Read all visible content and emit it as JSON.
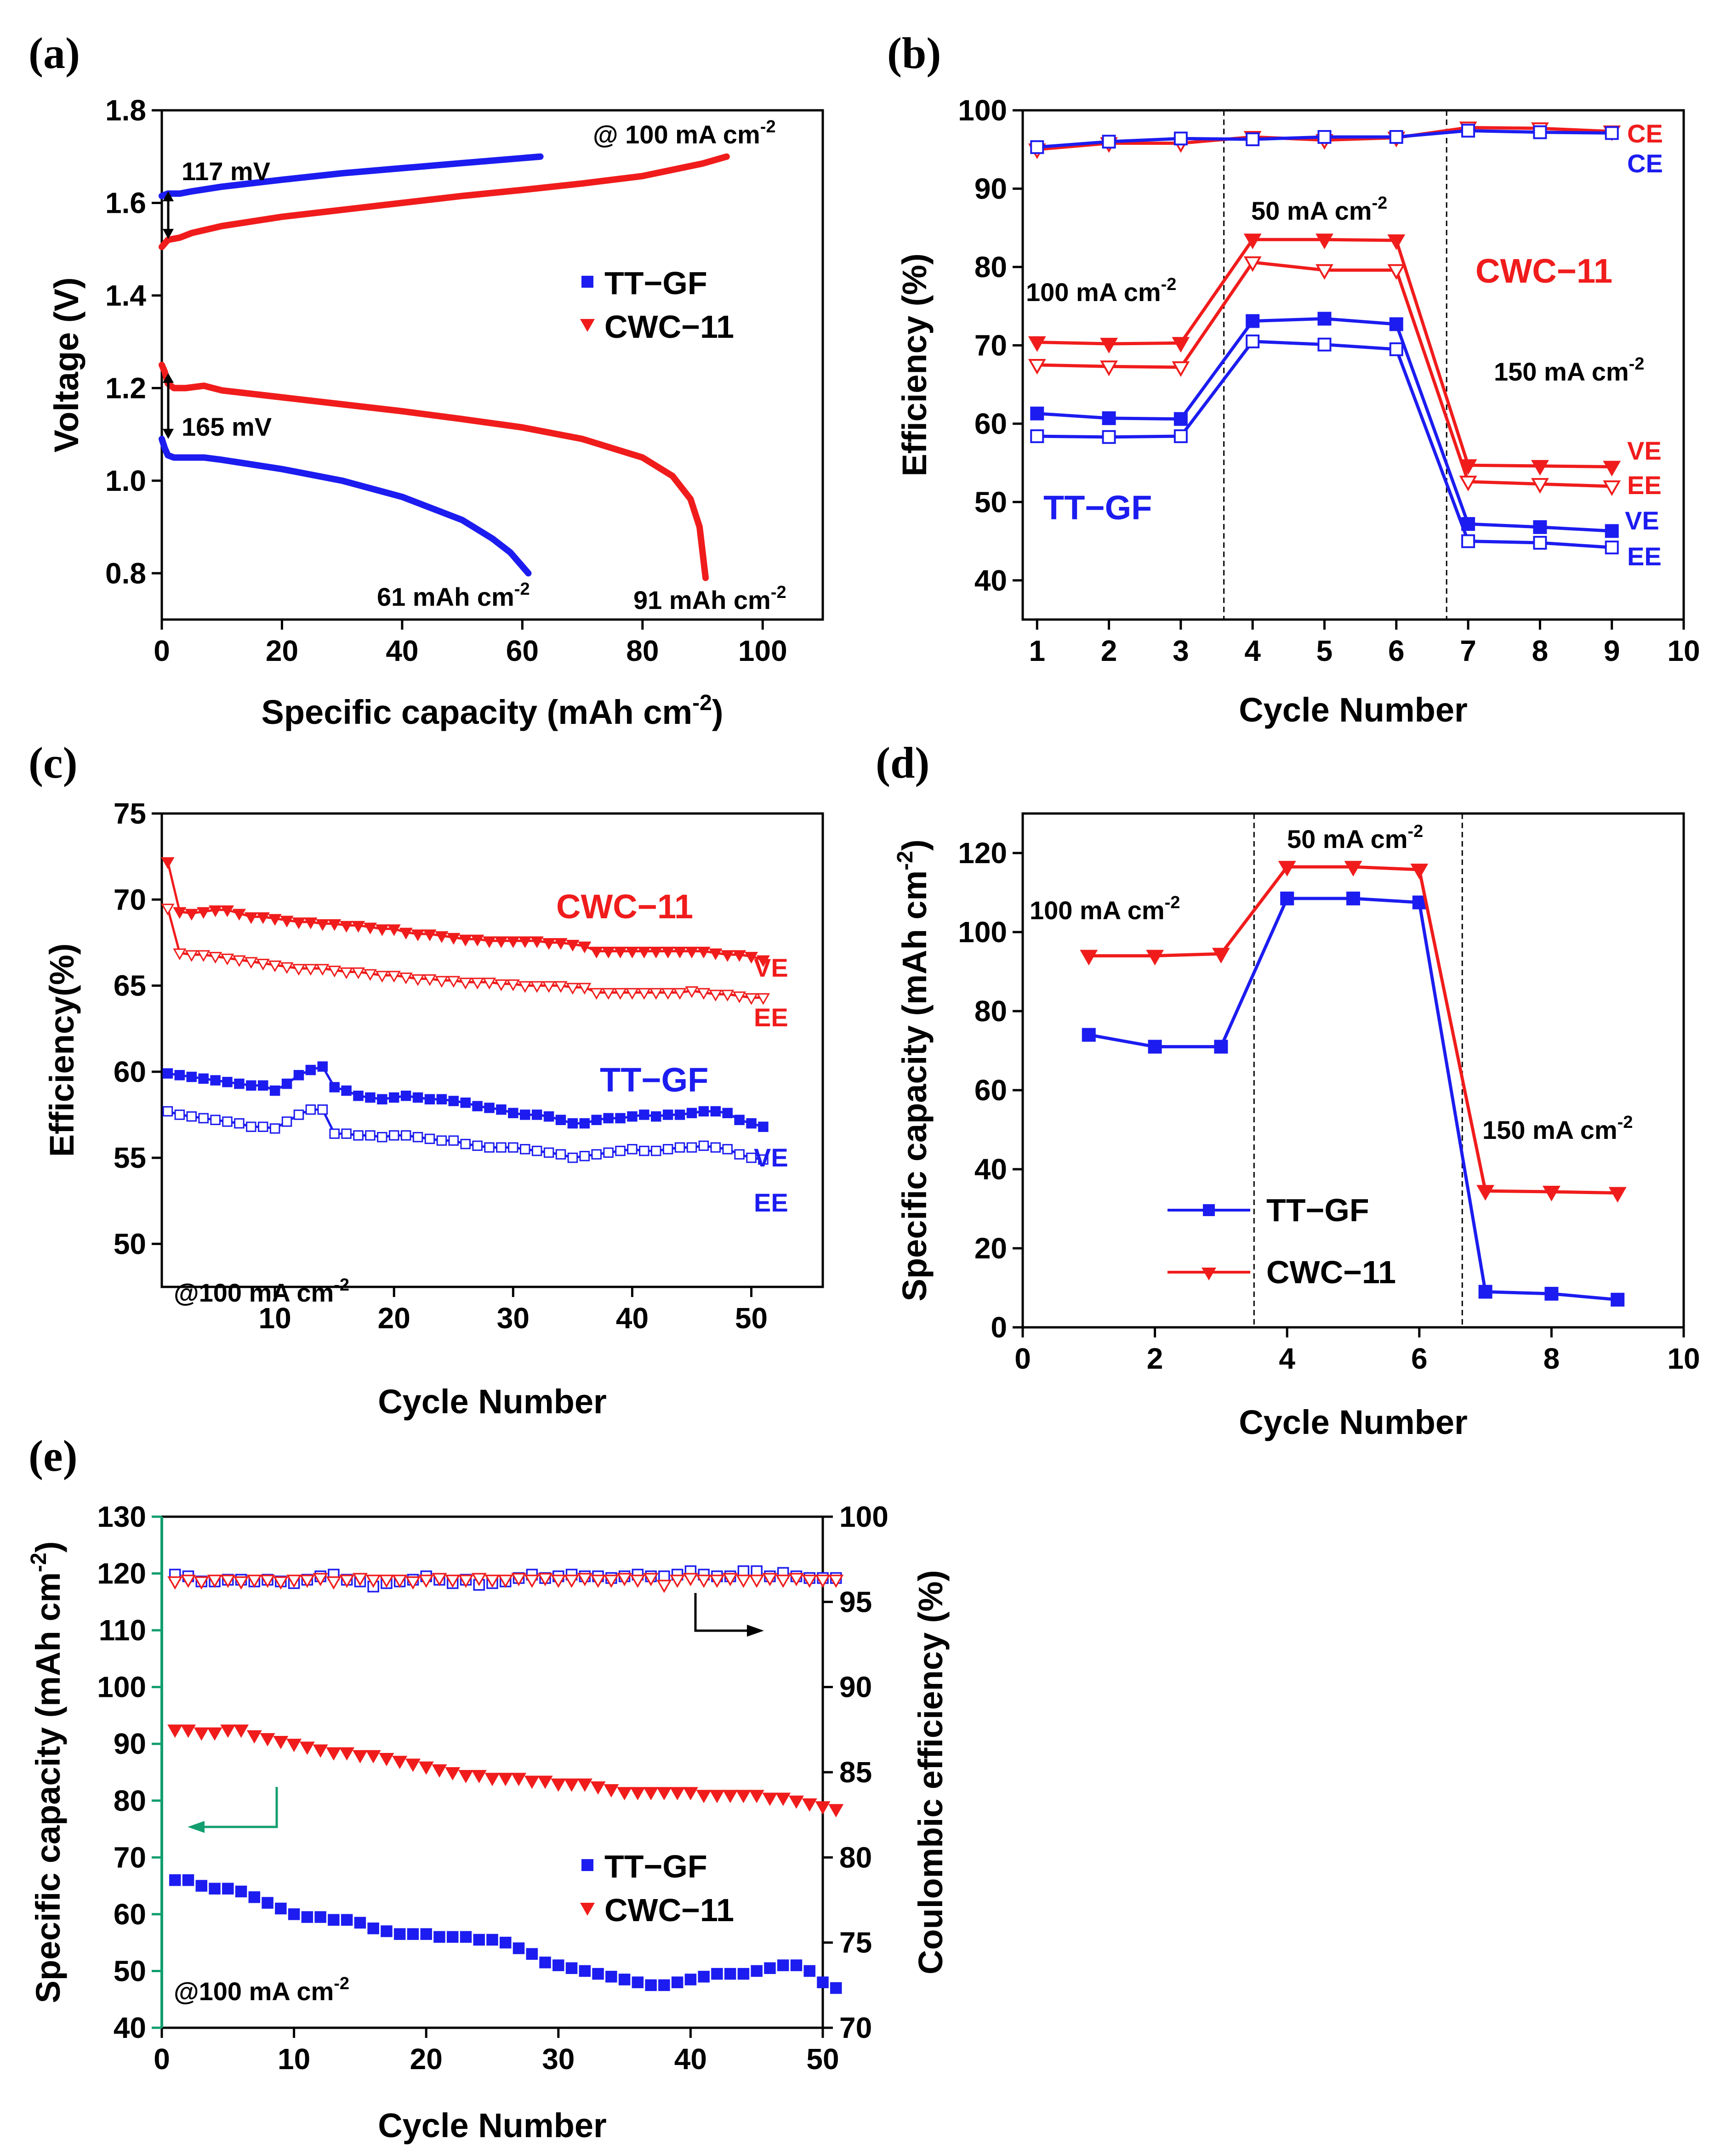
{
  "chart_data": [
    {
      "id": "a",
      "panel_label": "(a)",
      "type": "line",
      "xlabel": "Specific capacity (mAh cm",
      "xlabel_sup": "-2",
      "xlabel_end": ")",
      "ylabel": "Voltage (V)",
      "xlim": [
        0,
        110
      ],
      "ylim": [
        0.7,
        1.8
      ],
      "xticks": [
        0,
        20,
        40,
        60,
        80,
        100
      ],
      "yticks": [
        0.8,
        1.0,
        1.2,
        1.4,
        1.6,
        1.8
      ],
      "ytick_labels": [
        "0.8",
        "1.0",
        "1.2",
        "1.4",
        "1.6",
        "1.8"
      ],
      "colors": {
        "TT-GF": "#1c1cf0",
        "CWC-11": "#f01c1c"
      },
      "series": [
        {
          "name": "TT-GF charge",
          "color": "#1c1cf0",
          "x": [
            0,
            1,
            3,
            5,
            10,
            20,
            30,
            40,
            50,
            63
          ],
          "y": [
            1.615,
            1.62,
            1.62,
            1.625,
            1.635,
            1.65,
            1.664,
            1.675,
            1.686,
            1.7
          ]
        },
        {
          "name": "CWC-11 charge",
          "color": "#f01c1c",
          "x": [
            0,
            1,
            3,
            5,
            10,
            20,
            30,
            40,
            50,
            60,
            70,
            80,
            90,
            94
          ],
          "y": [
            1.505,
            1.52,
            1.525,
            1.535,
            1.55,
            1.57,
            1.585,
            1.6,
            1.615,
            1.628,
            1.642,
            1.658,
            1.685,
            1.7
          ]
        },
        {
          "name": "CWC-11 discharge",
          "color": "#f01c1c",
          "x": [
            0,
            0.5,
            1,
            2,
            4,
            7,
            10,
            20,
            30,
            40,
            50,
            60,
            70,
            80,
            85,
            88,
            89.5,
            90.5
          ],
          "y": [
            1.25,
            1.235,
            1.21,
            1.2,
            1.2,
            1.205,
            1.195,
            1.18,
            1.165,
            1.15,
            1.133,
            1.115,
            1.09,
            1.05,
            1.01,
            0.96,
            0.9,
            0.79
          ]
        },
        {
          "name": "TT-GF discharge",
          "color": "#1c1cf0",
          "x": [
            0,
            0.5,
            1,
            2,
            4,
            7,
            10,
            20,
            30,
            40,
            50,
            55,
            58,
            61
          ],
          "y": [
            1.09,
            1.07,
            1.055,
            1.05,
            1.05,
            1.05,
            1.045,
            1.025,
            1.0,
            0.965,
            0.915,
            0.875,
            0.845,
            0.8
          ]
        }
      ],
      "legend": [
        "TT−GF",
        "CWC−11"
      ],
      "annotations": {
        "rate": "@ 100 mA cm",
        "rate_sup": "-2",
        "charge_gap": "117 mV",
        "discharge_gap": "165 mV",
        "tt_cap": "61 mAh cm",
        "cwc_cap": "91 mAh cm",
        "sup": "-2"
      }
    },
    {
      "id": "b",
      "panel_label": "(b)",
      "type": "line",
      "xlabel": "Cycle Number",
      "ylabel": "Efficiency (%)",
      "xlim": [
        0.8,
        10
      ],
      "ylim": [
        35,
        100
      ],
      "xticks": [
        1,
        2,
        3,
        4,
        5,
        6,
        7,
        8,
        9,
        10
      ],
      "yticks": [
        40,
        50,
        60,
        70,
        80,
        90,
        100
      ],
      "vlines": [
        3.6,
        6.7
      ],
      "x": [
        1,
        2,
        3,
        4,
        5,
        6,
        7,
        8,
        9
      ],
      "series": [
        {
          "name": "CWC-11 CE",
          "color": "#f01c1c",
          "marker": "tri-down-open",
          "values": [
            95.0,
            95.8,
            95.8,
            96.6,
            96.2,
            96.5,
            97.8,
            97.7,
            97.3
          ]
        },
        {
          "name": "TT-GF CE",
          "color": "#1c1cf0",
          "marker": "square-open",
          "values": [
            95.3,
            96.0,
            96.4,
            96.3,
            96.6,
            96.6,
            97.4,
            97.2,
            97.1
          ]
        },
        {
          "name": "CWC-11 VE",
          "color": "#f01c1c",
          "marker": "tri-down",
          "values": [
            70.4,
            70.2,
            70.3,
            83.5,
            83.5,
            83.4,
            54.7,
            54.6,
            54.5
          ]
        },
        {
          "name": "CWC-11 EE",
          "color": "#f01c1c",
          "marker": "tri-down-open",
          "values": [
            67.5,
            67.3,
            67.2,
            80.6,
            79.6,
            79.6,
            52.6,
            52.3,
            52.0
          ]
        },
        {
          "name": "TT-GF VE",
          "color": "#1c1cf0",
          "marker": "square",
          "values": [
            61.3,
            60.7,
            60.6,
            73.1,
            73.4,
            72.7,
            47.2,
            46.8,
            46.3
          ]
        },
        {
          "name": "TT-GF EE",
          "color": "#1c1cf0",
          "marker": "square-open",
          "values": [
            58.4,
            58.3,
            58.4,
            70.5,
            70.1,
            69.5,
            45.0,
            44.8,
            44.2
          ]
        }
      ],
      "labels": {
        "ce": "CE",
        "ve": "VE",
        "ee": "EE",
        "tt": "TT−GF",
        "cwc": "CWC−11",
        "r100": "100 mA cm",
        "r50": "50 mA cm",
        "r150": "150 mA cm",
        "sup": "-2"
      }
    },
    {
      "id": "c",
      "panel_label": "(c)",
      "type": "line",
      "xlabel": "Cycle Number",
      "ylabel": "Efficiency(%)",
      "xlim": [
        0.5,
        56
      ],
      "ylim": [
        47.5,
        75
      ],
      "xticks": [
        10,
        20,
        30,
        40,
        50
      ],
      "yticks": [
        50,
        55,
        60,
        65,
        70,
        75
      ],
      "x_start": 1,
      "series": [
        {
          "name": "CWC-11 VE",
          "color": "#f01c1c",
          "marker": "tri-down",
          "values": [
            72.2,
            69.3,
            69.2,
            69.3,
            69.4,
            69.4,
            69.2,
            69.0,
            69.0,
            68.9,
            68.8,
            68.7,
            68.7,
            68.6,
            68.6,
            68.5,
            68.5,
            68.4,
            68.3,
            68.3,
            68.1,
            68.0,
            68.0,
            67.9,
            67.8,
            67.7,
            67.7,
            67.6,
            67.6,
            67.6,
            67.6,
            67.6,
            67.5,
            67.5,
            67.4,
            67.3,
            67.0,
            67.0,
            67.0,
            67.0,
            67.0,
            67.0,
            67.0,
            67.0,
            67.0,
            67.0,
            66.9,
            66.8,
            66.8,
            66.7,
            66.5
          ]
        },
        {
          "name": "CWC-11 EE",
          "color": "#f01c1c",
          "marker": "tri-down-open",
          "values": [
            69.5,
            66.9,
            66.8,
            66.8,
            66.7,
            66.6,
            66.5,
            66.4,
            66.3,
            66.2,
            66.1,
            66.0,
            66.0,
            66.0,
            65.9,
            65.8,
            65.8,
            65.7,
            65.6,
            65.6,
            65.5,
            65.4,
            65.4,
            65.3,
            65.3,
            65.2,
            65.2,
            65.2,
            65.1,
            65.1,
            65.0,
            65.0,
            65.0,
            65.0,
            64.9,
            64.9,
            64.6,
            64.6,
            64.6,
            64.6,
            64.6,
            64.6,
            64.6,
            64.6,
            64.7,
            64.6,
            64.5,
            64.5,
            64.4,
            64.3,
            64.3
          ]
        },
        {
          "name": "TT-GF VE",
          "color": "#1c1cf0",
          "marker": "square",
          "values": [
            59.9,
            59.8,
            59.7,
            59.6,
            59.5,
            59.4,
            59.3,
            59.2,
            59.2,
            58.9,
            59.3,
            59.8,
            60.1,
            60.3,
            59.1,
            58.9,
            58.6,
            58.5,
            58.4,
            58.5,
            58.6,
            58.5,
            58.4,
            58.4,
            58.3,
            58.2,
            58.0,
            57.9,
            57.8,
            57.6,
            57.5,
            57.5,
            57.4,
            57.2,
            57.0,
            57.0,
            57.2,
            57.3,
            57.3,
            57.4,
            57.5,
            57.4,
            57.5,
            57.5,
            57.6,
            57.7,
            57.7,
            57.6,
            57.2,
            57.0,
            56.8
          ]
        },
        {
          "name": "TT-GF EE",
          "color": "#1c1cf0",
          "marker": "square-open",
          "values": [
            57.7,
            57.5,
            57.4,
            57.3,
            57.2,
            57.1,
            57.0,
            56.8,
            56.8,
            56.7,
            57.1,
            57.5,
            57.8,
            57.8,
            56.4,
            56.4,
            56.3,
            56.3,
            56.2,
            56.3,
            56.3,
            56.2,
            56.1,
            56.0,
            56.0,
            55.8,
            55.7,
            55.6,
            55.6,
            55.6,
            55.5,
            55.4,
            55.3,
            55.2,
            55.0,
            55.1,
            55.2,
            55.3,
            55.4,
            55.5,
            55.4,
            55.4,
            55.5,
            55.6,
            55.6,
            55.7,
            55.6,
            55.5,
            55.2,
            55.0,
            54.9
          ]
        }
      ],
      "labels": {
        "cwc": "CWC−11",
        "tt": "TT−GF",
        "ve": "VE",
        "ee": "EE",
        "rate": "@100 mA cm",
        "sup": "-2"
      }
    },
    {
      "id": "d",
      "panel_label": "(d)",
      "type": "line",
      "xlabel": "Cycle Number",
      "ylabel": "Specific capacity (mAh cm",
      "ylabel_sup": "-2",
      "ylabel_end": ")",
      "xlim": [
        0,
        10
      ],
      "ylim": [
        0,
        130
      ],
      "xticks": [
        0,
        2,
        4,
        6,
        8,
        10
      ],
      "yticks": [
        0,
        20,
        40,
        60,
        80,
        100,
        120
      ],
      "vlines": [
        3.5,
        6.65
      ],
      "x": [
        1,
        2,
        3,
        4,
        5,
        6,
        7,
        8,
        9
      ],
      "series": [
        {
          "name": "TT-GF",
          "color": "#1c1cf0",
          "marker": "square",
          "values": [
            74,
            71,
            71,
            108.5,
            108.5,
            107.5,
            9,
            8.5,
            7
          ]
        },
        {
          "name": "CWC-11",
          "color": "#f01c1c",
          "marker": "tri-down",
          "values": [
            94,
            94,
            94.5,
            116.5,
            116.5,
            115.8,
            34.5,
            34.3,
            34
          ]
        }
      ],
      "legend": [
        "TT−GF",
        "CWC−11"
      ],
      "labels": {
        "r100": "100 mA cm",
        "r50": "50 mA cm",
        "r150": "150 mA cm",
        "sup": "-2"
      }
    },
    {
      "id": "e",
      "panel_label": "(e)",
      "type": "scatter",
      "xlabel": "Cycle Number",
      "ylabel_left": "Specific capacity (mAh cm",
      "ylabel_left_sup": "-2",
      "ylabel_left_end": ")",
      "ylabel_right": "Coulombic efficiency (%)",
      "xlim": [
        0,
        50
      ],
      "ylim_left": [
        40,
        130
      ],
      "ylim_right": [
        70,
        100
      ],
      "xticks": [
        0,
        10,
        20,
        30,
        40,
        50
      ],
      "yticks_left": [
        40,
        50,
        60,
        70,
        80,
        90,
        100,
        110,
        120,
        130
      ],
      "yticks_right": [
        70,
        75,
        80,
        85,
        90,
        95,
        100
      ],
      "x_start": 1,
      "series": [
        {
          "name": "TT-GF capacity",
          "axis": "left",
          "color": "#1c1cf0",
          "marker": "square",
          "values": [
            66,
            66,
            65,
            64.5,
            64.5,
            64,
            63,
            62,
            61,
            60,
            59.5,
            59.5,
            59,
            59,
            58.5,
            57.5,
            57,
            56.5,
            56.5,
            56.5,
            56,
            56,
            56,
            55.5,
            55.5,
            55,
            54,
            53,
            51.5,
            51,
            50.5,
            50,
            49.5,
            49,
            48.5,
            48,
            47.5,
            47.5,
            48,
            48.5,
            49,
            49.5,
            49.5,
            49.5,
            50,
            50.5,
            51,
            51,
            50,
            48,
            47
          ]
        },
        {
          "name": "CWC-11 capacity",
          "axis": "left",
          "color": "#f01c1c",
          "marker": "tri-down",
          "values": [
            92.5,
            92.5,
            92,
            92,
            92.5,
            92.5,
            91.5,
            91,
            90.5,
            90,
            89.5,
            89,
            88.5,
            88.5,
            88,
            88,
            87.5,
            87,
            86.5,
            86,
            85.5,
            85,
            84.5,
            84.5,
            84,
            84,
            84,
            83.5,
            83.5,
            83,
            83,
            83,
            82.5,
            82,
            81.5,
            81.5,
            81.5,
            81.5,
            81.5,
            81.5,
            81,
            81,
            81,
            81,
            81,
            80.5,
            80.5,
            80,
            79.5,
            79,
            78.5
          ]
        },
        {
          "name": "TT-GF CE",
          "axis": "right",
          "color": "#1c1cf0",
          "marker": "square-open",
          "values": [
            96.6,
            96.5,
            96.2,
            96.2,
            96.3,
            96.3,
            96.2,
            96.3,
            96.2,
            96.1,
            96.3,
            96.5,
            96.6,
            96.3,
            96.2,
            95.9,
            96.1,
            96.2,
            96.3,
            96.5,
            96.3,
            96.1,
            96.3,
            96.0,
            96.1,
            96.2,
            96.4,
            96.6,
            96.4,
            96.5,
            96.6,
            96.5,
            96.5,
            96.4,
            96.5,
            96.6,
            96.5,
            96.5,
            96.6,
            96.8,
            96.6,
            96.5,
            96.5,
            96.8,
            96.8,
            96.5,
            96.7,
            96.5,
            96.4,
            96.4,
            96.4
          ]
        },
        {
          "name": "CWC-11 CE",
          "axis": "right",
          "color": "#f01c1c",
          "marker": "tri-down-open",
          "values": [
            96.2,
            96.3,
            96.2,
            96.3,
            96.3,
            96.2,
            96.3,
            96.3,
            96.2,
            96.3,
            96.3,
            96.4,
            96.2,
            96.3,
            96.4,
            96.3,
            96.3,
            96.3,
            96.2,
            96.3,
            96.4,
            96.3,
            96.3,
            96.4,
            96.3,
            96.3,
            96.4,
            96.3,
            96.4,
            96.3,
            96.3,
            96.4,
            96.3,
            96.3,
            96.4,
            96.3,
            96.4,
            96.0,
            96.3,
            96.4,
            96.3,
            96.3,
            96.4,
            96.3,
            96.3,
            96.4,
            96.3,
            96.4,
            96.3,
            96.3,
            96.3
          ]
        }
      ],
      "legend": [
        "TT−GF",
        "CWC−11"
      ],
      "labels": {
        "rate": "@100 mA cm",
        "sup": "-2"
      },
      "axis_colors": {
        "left": "#129e6e",
        "right": "#000000"
      }
    }
  ]
}
